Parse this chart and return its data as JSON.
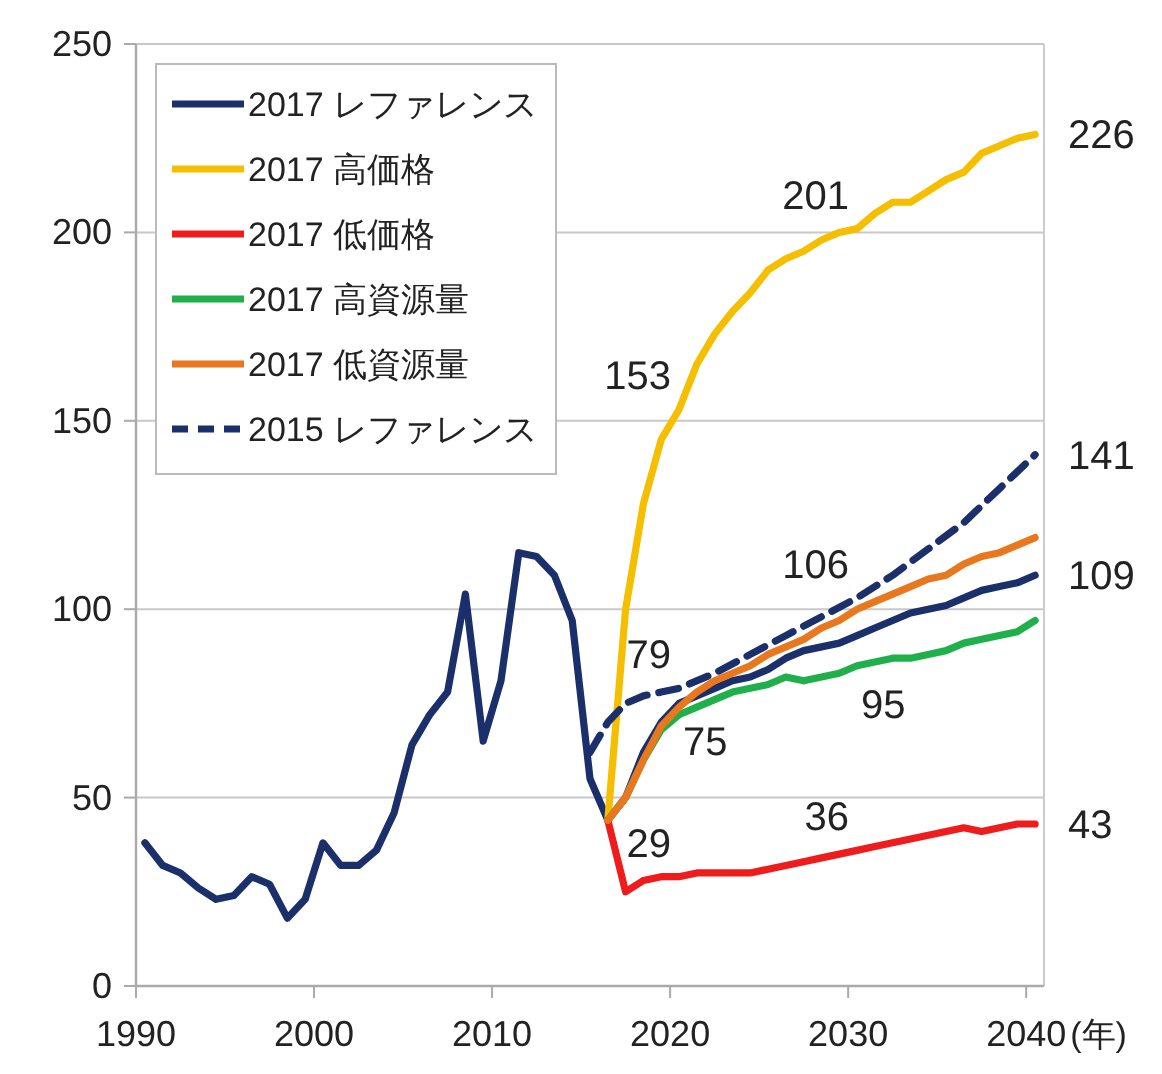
{
  "chart_data": {
    "type": "line",
    "xlabel": "(年)",
    "xlim": [
      1990,
      2041
    ],
    "ylim": [
      0,
      250
    ],
    "xticks": [
      1990,
      2000,
      2010,
      2020,
      2030,
      2040
    ],
    "yticks": [
      0,
      50,
      100,
      150,
      200,
      250
    ],
    "grid": "y",
    "legend": "top left",
    "line_style": "solid",
    "series": [
      {
        "name": "2017 レファレンス",
        "color": "#1b2f6b",
        "x": [
          1990.5,
          1991.5,
          1992.5,
          1993.5,
          1994.5,
          1995.5,
          1996.5,
          1997.5,
          1998.5,
          1999.5,
          2000.5,
          2001.5,
          2002.5,
          2003.5,
          2004.5,
          2005.5,
          2006.5,
          2007.5,
          2008.5,
          2009.5,
          2010.5,
          2011.5,
          2012.5,
          2013.5,
          2014.5,
          2015.5,
          2016.5,
          2017.5,
          2018.5,
          2019.5,
          2020.5,
          2021.5,
          2022.5,
          2023.5,
          2024.5,
          2025.5,
          2026.5,
          2027.5,
          2028.5,
          2029.5,
          2030.5,
          2031.5,
          2032.5,
          2033.5,
          2034.5,
          2035.5,
          2036.5,
          2037.5,
          2038.5,
          2039.5,
          2040.5
        ],
        "values": [
          38,
          32,
          30,
          26,
          23,
          24,
          29,
          27,
          18,
          23,
          38,
          32,
          32,
          36,
          46,
          64,
          72,
          78,
          104,
          65,
          81,
          115,
          114,
          109,
          97,
          55,
          44,
          50,
          62,
          70,
          75,
          77,
          79,
          81,
          82,
          84,
          87,
          89,
          90,
          91,
          93,
          95,
          97,
          99,
          100,
          101,
          103,
          105,
          106,
          107,
          109
        ]
      },
      {
        "name": "2017 高価格",
        "color": "#f5bf00",
        "x": [
          2016.5,
          2017.5,
          2018.5,
          2019.5,
          2020.5,
          2021.5,
          2022.5,
          2023.5,
          2024.5,
          2025.5,
          2026.5,
          2027.5,
          2028.5,
          2029.5,
          2030.5,
          2031.5,
          2032.5,
          2033.5,
          2034.5,
          2035.5,
          2036.5,
          2037.5,
          2038.5,
          2039.5,
          2040.5
        ],
        "values": [
          44,
          100,
          128,
          145,
          153,
          165,
          173,
          179,
          184,
          190,
          193,
          195,
          198,
          200,
          201,
          205,
          208,
          208,
          211,
          214,
          216,
          221,
          223,
          225,
          226
        ]
      },
      {
        "name": "2017 低価格",
        "color": "#ee1c1c",
        "x": [
          2016.5,
          2017.5,
          2018.5,
          2019.5,
          2020.5,
          2021.5,
          2022.5,
          2023.5,
          2024.5,
          2025.5,
          2026.5,
          2027.5,
          2028.5,
          2029.5,
          2030.5,
          2031.5,
          2032.5,
          2033.5,
          2034.5,
          2035.5,
          2036.5,
          2037.5,
          2038.5,
          2039.5,
          2040.5
        ],
        "values": [
          44,
          25,
          28,
          29,
          29,
          30,
          30,
          30,
          30,
          31,
          32,
          33,
          34,
          35,
          36,
          37,
          38,
          39,
          40,
          41,
          42,
          41,
          42,
          43,
          43
        ]
      },
      {
        "name": "2017 高資源量",
        "color": "#1fb04c",
        "x": [
          2016.5,
          2017.5,
          2018.5,
          2019.5,
          2020.5,
          2021.5,
          2022.5,
          2023.5,
          2024.5,
          2025.5,
          2026.5,
          2027.5,
          2028.5,
          2029.5,
          2030.5,
          2031.5,
          2032.5,
          2033.5,
          2034.5,
          2035.5,
          2036.5,
          2037.5,
          2038.5,
          2039.5,
          2040.5
        ],
        "values": [
          44,
          50,
          60,
          68,
          72,
          74,
          76,
          78,
          79,
          80,
          82,
          81,
          82,
          83,
          85,
          86,
          87,
          87,
          88,
          89,
          91,
          92,
          93,
          94,
          97
        ]
      },
      {
        "name": "2017 低資源量",
        "color": "#e8771e",
        "x": [
          2016.5,
          2017.5,
          2018.5,
          2019.5,
          2020.5,
          2021.5,
          2022.5,
          2023.5,
          2024.5,
          2025.5,
          2026.5,
          2027.5,
          2028.5,
          2029.5,
          2030.5,
          2031.5,
          2032.5,
          2033.5,
          2034.5,
          2035.5,
          2036.5,
          2037.5,
          2038.5,
          2039.5,
          2040.5
        ],
        "values": [
          44,
          50,
          60,
          69,
          74,
          78,
          81,
          83,
          85,
          88,
          90,
          92,
          95,
          97,
          100,
          102,
          104,
          106,
          108,
          109,
          112,
          114,
          115,
          117,
          119
        ]
      },
      {
        "name": "2015 レファレンス",
        "color": "#1b2f6b",
        "line_style": "dashed",
        "x": [
          2015.5,
          2016.5,
          2017.5,
          2018.5,
          2019.5,
          2020.5,
          2022.5,
          2024.5,
          2026.5,
          2028.5,
          2030.5,
          2032.5,
          2034.5,
          2036.5,
          2038.5,
          2040.5
        ],
        "values": [
          62,
          70,
          75,
          77,
          78,
          79,
          83,
          88,
          93,
          98,
          103,
          109,
          116,
          123,
          132,
          141
        ]
      }
    ],
    "annotations": [
      {
        "text": "226",
        "x": 2040.5,
        "y": 226
      },
      {
        "text": "141",
        "x": 2040.5,
        "y": 141
      },
      {
        "text": "109",
        "x": 2040.5,
        "y": 109
      },
      {
        "text": "43",
        "x": 2040.5,
        "y": 43
      },
      {
        "text": "201",
        "x": 2030.5,
        "y": 201
      },
      {
        "text": "153",
        "x": 2020.5,
        "y": 153
      },
      {
        "text": "106",
        "x": 2030.5,
        "y": 103
      },
      {
        "text": "79",
        "x": 2020.5,
        "y": 79
      },
      {
        "text": "75",
        "x": 2020.5,
        "y": 75
      },
      {
        "text": "95",
        "x": 2030.5,
        "y": 85
      },
      {
        "text": "29",
        "x": 2020.5,
        "y": 29
      },
      {
        "text": "36",
        "x": 2030.5,
        "y": 36
      }
    ]
  }
}
